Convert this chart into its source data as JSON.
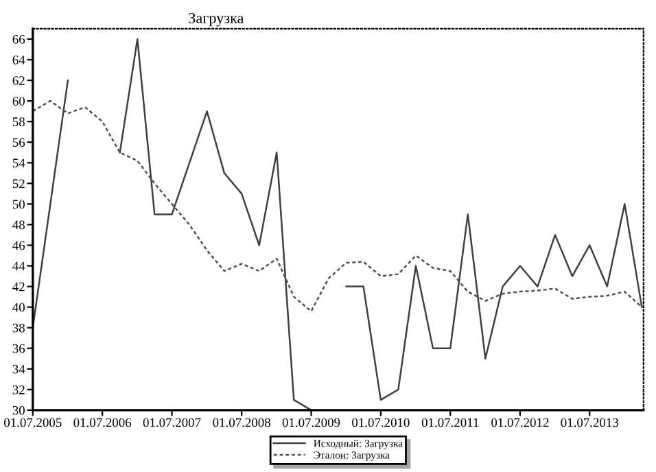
{
  "chart_data": {
    "type": "line",
    "title": "Загрузка",
    "x": [
      "2005-07-01",
      "2005-10-01",
      "2006-01-01",
      "2006-04-01",
      "2006-07-01",
      "2006-10-01",
      "2007-01-01",
      "2007-04-01",
      "2007-07-01",
      "2007-10-01",
      "2008-01-01",
      "2008-04-01",
      "2008-07-01",
      "2008-10-01",
      "2009-01-01",
      "2009-04-01",
      "2009-07-01",
      "2009-10-01",
      "2010-01-01",
      "2010-04-01",
      "2010-07-01",
      "2010-10-01",
      "2011-01-01",
      "2011-04-01",
      "2011-07-01",
      "2011-10-01",
      "2012-01-01",
      "2012-04-01",
      "2012-07-01",
      "2012-10-01",
      "2013-01-01",
      "2013-04-01",
      "2013-07-01",
      "2013-10-01",
      "2014-01-01",
      "2014-04-01"
    ],
    "series": [
      {
        "name": "Исходный: Загрузка",
        "color": "#404040",
        "line_style": "solid",
        "values": [
          38,
          50,
          62,
          null,
          null,
          55,
          66,
          49,
          49,
          54,
          59,
          53,
          51,
          46,
          55,
          31,
          30,
          null,
          42,
          42,
          31,
          32,
          44,
          36,
          36,
          49,
          35,
          42,
          44,
          42,
          47,
          43,
          46,
          42,
          50,
          40
        ]
      },
      {
        "name": "Эталон: Загрузка",
        "color": "#505050",
        "line_style": "dashed",
        "values": [
          59,
          60,
          58.8,
          59.4,
          58,
          55,
          54.2,
          52,
          50,
          48,
          45.5,
          43.5,
          44.2,
          43.5,
          44.7,
          41,
          39.6,
          42.8,
          44.3,
          44.4,
          43,
          43.2,
          45,
          43.8,
          43.5,
          41.5,
          40.6,
          41.3,
          41.5,
          41.6,
          41.8,
          40.8,
          41,
          41.1,
          41.5,
          40
        ]
      }
    ],
    "xlim": [
      "2005-07-01",
      "2014-04-10"
    ],
    "xticks": [
      {
        "value": "2005-07-01",
        "label": "01.07.2005"
      },
      {
        "value": "2006-07-01",
        "label": "01.07.2006"
      },
      {
        "value": "2007-07-01",
        "label": "01.07.2007"
      },
      {
        "value": "2008-07-01",
        "label": "01.07.2008"
      },
      {
        "value": "2009-07-01",
        "label": "01.07.2009"
      },
      {
        "value": "2010-07-01",
        "label": "01.07.2010"
      },
      {
        "value": "2011-07-01",
        "label": "01.07.2011"
      },
      {
        "value": "2012-07-01",
        "label": "01.07.2012"
      },
      {
        "value": "2013-07-01",
        "label": "01.07.2013"
      }
    ],
    "ylim": [
      30,
      67
    ],
    "yticks": [
      30,
      32,
      34,
      36,
      38,
      40,
      42,
      44,
      46,
      48,
      50,
      52,
      54,
      56,
      58,
      60,
      62,
      64,
      66
    ],
    "grid": false,
    "legend": "bottom",
    "marker": "none"
  }
}
